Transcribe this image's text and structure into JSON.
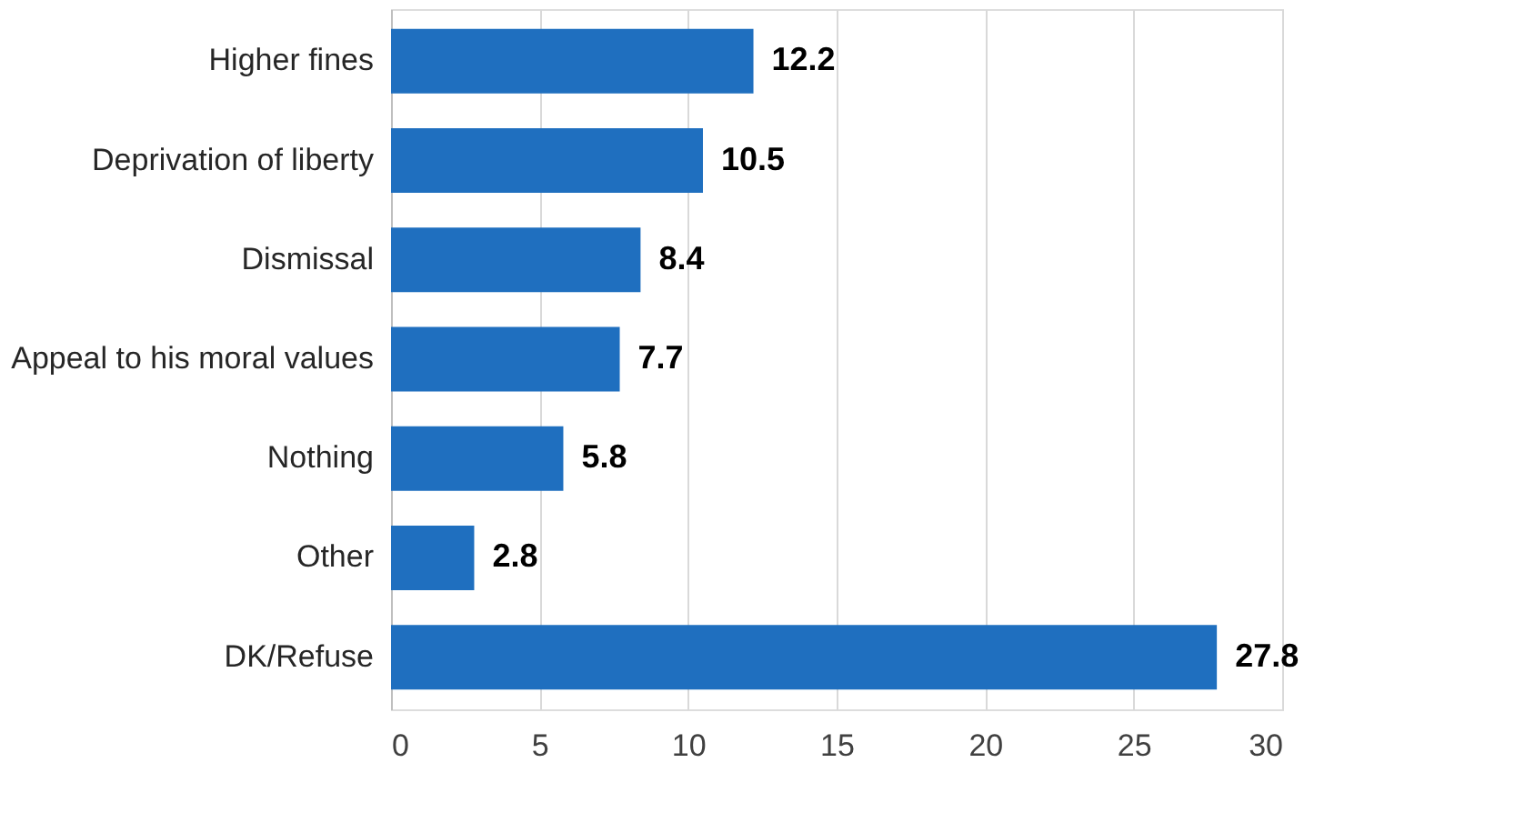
{
  "chart_data": {
    "type": "bar",
    "orientation": "horizontal",
    "categories": [
      "Higher fines",
      "Deprivation of liberty",
      "Dismissal",
      "Appeal to his moral values",
      "Nothing",
      "Other",
      "DK/Refuse"
    ],
    "values": [
      12.2,
      10.5,
      8.4,
      7.7,
      5.8,
      2.8,
      27.8
    ],
    "color": "#1f6fbf",
    "xlim": [
      0,
      30
    ],
    "xticks": [
      0,
      5,
      10,
      15,
      20,
      25,
      30
    ],
    "grid": "x",
    "data_labels": true
  }
}
